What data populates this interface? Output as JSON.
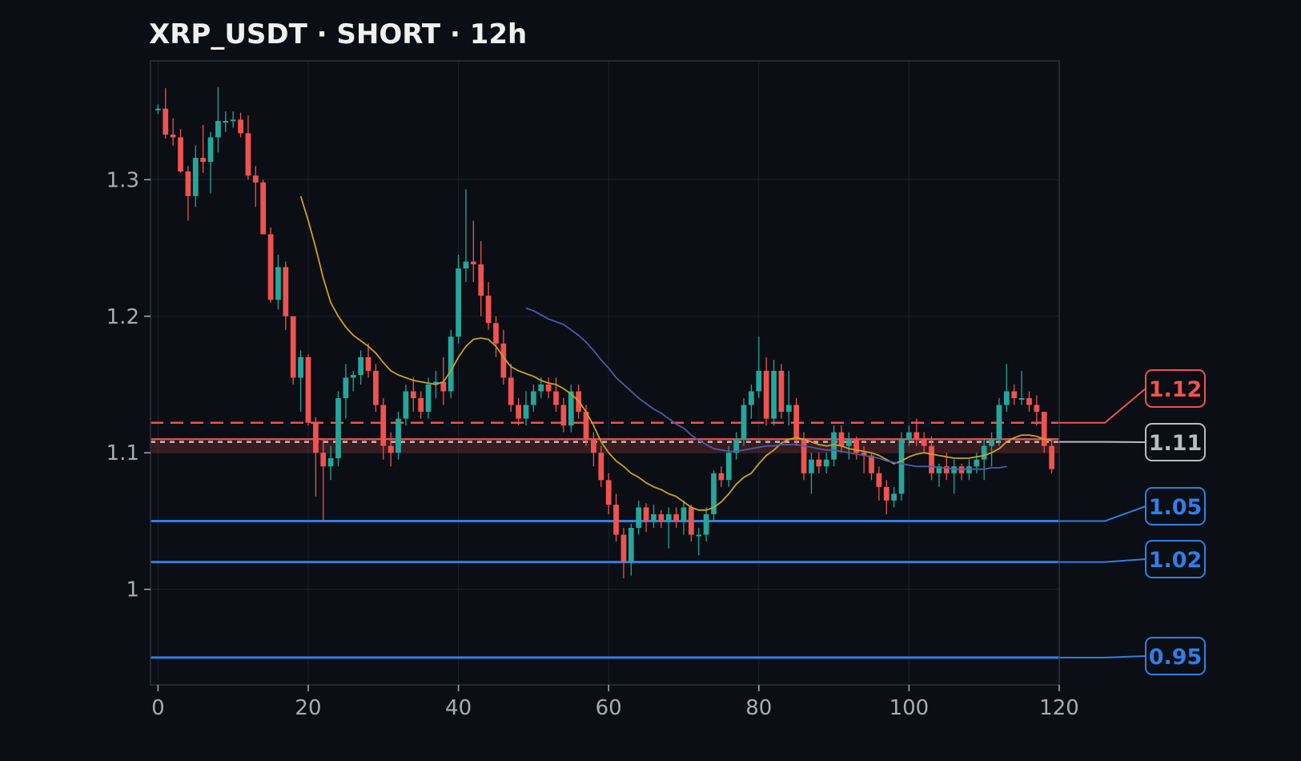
{
  "title": "XRP_USDT · SHORT · 12h",
  "colors": {
    "background": "#0b0e14",
    "up": "#26a69a",
    "down": "#ef5350",
    "ma_fast": "#c9a227",
    "ma_slow": "#4f5ba8",
    "grid": "#1c212b",
    "frame": "#2c323d",
    "tick": "#a8adb5",
    "support": "#2f7fe6",
    "current": "#b8bcc4",
    "entry": "#ef5350"
  },
  "chart_data": {
    "type": "candlestick",
    "xlim": [
      -1,
      120
    ],
    "ylim": [
      0.93,
      1.387
    ],
    "grid": true,
    "x_ticks": [
      "0",
      "20",
      "40",
      "60",
      "80",
      "100",
      "120"
    ],
    "y_ticks": [
      "1",
      "1.1",
      "1.2",
      "1.3"
    ],
    "candles": [
      [
        0,
        1.352,
        1.355,
        1.348,
        1.352
      ],
      [
        1,
        1.352,
        1.367,
        1.33,
        1.333
      ],
      [
        2,
        1.333,
        1.345,
        1.325,
        1.331
      ],
      [
        3,
        1.331,
        1.337,
        1.305,
        1.306
      ],
      [
        4,
        1.306,
        1.31,
        1.27,
        1.288
      ],
      [
        5,
        1.288,
        1.325,
        1.28,
        1.316
      ],
      [
        6,
        1.316,
        1.34,
        1.305,
        1.313
      ],
      [
        7,
        1.313,
        1.335,
        1.29,
        1.331
      ],
      [
        8,
        1.331,
        1.368,
        1.32,
        1.343
      ],
      [
        9,
        1.343,
        1.35,
        1.335,
        1.343
      ],
      [
        10,
        1.343,
        1.35,
        1.338,
        1.344
      ],
      [
        11,
        1.344,
        1.349,
        1.331,
        1.334
      ],
      [
        12,
        1.334,
        1.347,
        1.3,
        1.303
      ],
      [
        13,
        1.303,
        1.31,
        1.28,
        1.298
      ],
      [
        14,
        1.298,
        1.3,
        1.26,
        1.26
      ],
      [
        15,
        1.26,
        1.265,
        1.21,
        1.212
      ],
      [
        16,
        1.212,
        1.245,
        1.205,
        1.236
      ],
      [
        17,
        1.236,
        1.24,
        1.19,
        1.2
      ],
      [
        18,
        1.2,
        1.2,
        1.15,
        1.155
      ],
      [
        19,
        1.155,
        1.175,
        1.13,
        1.17
      ],
      [
        20,
        1.17,
        1.172,
        1.12,
        1.122
      ],
      [
        21,
        1.122,
        1.126,
        1.068,
        1.1
      ],
      [
        22,
        1.1,
        1.11,
        1.05,
        1.09
      ],
      [
        23,
        1.09,
        1.105,
        1.08,
        1.096
      ],
      [
        24,
        1.096,
        1.145,
        1.09,
        1.14
      ],
      [
        25,
        1.14,
        1.165,
        1.125,
        1.155
      ],
      [
        26,
        1.155,
        1.16,
        1.145,
        1.157
      ],
      [
        27,
        1.157,
        1.175,
        1.15,
        1.17
      ],
      [
        28,
        1.17,
        1.18,
        1.155,
        1.16
      ],
      [
        29,
        1.16,
        1.165,
        1.13,
        1.135
      ],
      [
        30,
        1.135,
        1.14,
        1.095,
        1.105
      ],
      [
        31,
        1.105,
        1.115,
        1.09,
        1.1
      ],
      [
        32,
        1.1,
        1.13,
        1.095,
        1.125
      ],
      [
        33,
        1.125,
        1.15,
        1.12,
        1.145
      ],
      [
        34,
        1.145,
        1.155,
        1.13,
        1.14
      ],
      [
        35,
        1.14,
        1.145,
        1.125,
        1.13
      ],
      [
        36,
        1.13,
        1.155,
        1.125,
        1.15
      ],
      [
        37,
        1.15,
        1.16,
        1.14,
        1.152
      ],
      [
        38,
        1.152,
        1.17,
        1.135,
        1.145
      ],
      [
        39,
        1.145,
        1.19,
        1.14,
        1.185
      ],
      [
        40,
        1.185,
        1.245,
        1.18,
        1.235
      ],
      [
        41,
        1.235,
        1.293,
        1.225,
        1.24
      ],
      [
        42,
        1.24,
        1.27,
        1.225,
        1.238
      ],
      [
        43,
        1.238,
        1.255,
        1.2,
        1.215
      ],
      [
        44,
        1.215,
        1.225,
        1.19,
        1.195
      ],
      [
        45,
        1.195,
        1.2,
        1.17,
        1.18
      ],
      [
        46,
        1.18,
        1.19,
        1.15,
        1.155
      ],
      [
        47,
        1.155,
        1.165,
        1.13,
        1.135
      ],
      [
        48,
        1.135,
        1.14,
        1.12,
        1.125
      ],
      [
        49,
        1.125,
        1.145,
        1.12,
        1.135
      ],
      [
        50,
        1.135,
        1.15,
        1.13,
        1.145
      ],
      [
        51,
        1.145,
        1.155,
        1.14,
        1.15
      ],
      [
        52,
        1.15,
        1.155,
        1.14,
        1.145
      ],
      [
        53,
        1.145,
        1.155,
        1.13,
        1.135
      ],
      [
        54,
        1.135,
        1.14,
        1.115,
        1.12
      ],
      [
        55,
        1.12,
        1.15,
        1.115,
        1.145
      ],
      [
        56,
        1.145,
        1.15,
        1.125,
        1.13
      ],
      [
        57,
        1.13,
        1.135,
        1.105,
        1.11
      ],
      [
        58,
        1.11,
        1.115,
        1.09,
        1.1
      ],
      [
        59,
        1.1,
        1.105,
        1.075,
        1.08
      ],
      [
        60,
        1.08,
        1.085,
        1.055,
        1.062
      ],
      [
        61,
        1.062,
        1.07,
        1.035,
        1.04
      ],
      [
        62,
        1.04,
        1.045,
        1.008,
        1.02
      ],
      [
        63,
        1.02,
        1.048,
        1.01,
        1.045
      ],
      [
        64,
        1.045,
        1.065,
        1.04,
        1.06
      ],
      [
        65,
        1.06,
        1.063,
        1.042,
        1.05
      ],
      [
        66,
        1.05,
        1.062,
        1.045,
        1.055
      ],
      [
        67,
        1.055,
        1.058,
        1.045,
        1.05
      ],
      [
        68,
        1.05,
        1.06,
        1.03,
        1.055
      ],
      [
        69,
        1.055,
        1.06,
        1.045,
        1.05
      ],
      [
        70,
        1.05,
        1.065,
        1.04,
        1.06
      ],
      [
        71,
        1.06,
        1.062,
        1.035,
        1.04
      ],
      [
        72,
        1.04,
        1.045,
        1.025,
        1.04
      ],
      [
        73,
        1.04,
        1.06,
        1.035,
        1.055
      ],
      [
        74,
        1.055,
        1.087,
        1.05,
        1.085
      ],
      [
        75,
        1.085,
        1.09,
        1.075,
        1.08
      ],
      [
        76,
        1.08,
        1.105,
        1.075,
        1.1
      ],
      [
        77,
        1.1,
        1.115,
        1.095,
        1.11
      ],
      [
        78,
        1.11,
        1.14,
        1.105,
        1.135
      ],
      [
        79,
        1.135,
        1.15,
        1.125,
        1.145
      ],
      [
        80,
        1.145,
        1.185,
        1.14,
        1.16
      ],
      [
        81,
        1.16,
        1.17,
        1.12,
        1.125
      ],
      [
        82,
        1.125,
        1.168,
        1.12,
        1.16
      ],
      [
        83,
        1.16,
        1.165,
        1.125,
        1.13
      ],
      [
        84,
        1.13,
        1.16,
        1.12,
        1.135
      ],
      [
        85,
        1.135,
        1.14,
        1.105,
        1.11
      ],
      [
        86,
        1.11,
        1.115,
        1.08,
        1.085
      ],
      [
        87,
        1.085,
        1.1,
        1.07,
        1.095
      ],
      [
        88,
        1.095,
        1.1,
        1.085,
        1.09
      ],
      [
        89,
        1.09,
        1.1,
        1.085,
        1.095
      ],
      [
        90,
        1.095,
        1.12,
        1.09,
        1.115
      ],
      [
        91,
        1.115,
        1.12,
        1.1,
        1.105
      ],
      [
        92,
        1.105,
        1.115,
        1.095,
        1.11
      ],
      [
        93,
        1.11,
        1.112,
        1.095,
        1.1
      ],
      [
        94,
        1.1,
        1.105,
        1.085,
        1.098
      ],
      [
        95,
        1.098,
        1.1,
        1.08,
        1.085
      ],
      [
        96,
        1.085,
        1.09,
        1.065,
        1.075
      ],
      [
        97,
        1.075,
        1.08,
        1.055,
        1.065
      ],
      [
        98,
        1.065,
        1.075,
        1.06,
        1.07
      ],
      [
        99,
        1.07,
        1.115,
        1.065,
        1.11
      ],
      [
        100,
        1.11,
        1.12,
        1.105,
        1.115
      ],
      [
        101,
        1.115,
        1.125,
        1.105,
        1.11
      ],
      [
        102,
        1.11,
        1.115,
        1.1,
        1.105
      ],
      [
        103,
        1.105,
        1.112,
        1.08,
        1.085
      ],
      [
        104,
        1.085,
        1.092,
        1.075,
        1.09
      ],
      [
        105,
        1.09,
        1.1,
        1.08,
        1.085
      ],
      [
        106,
        1.085,
        1.095,
        1.07,
        1.09
      ],
      [
        107,
        1.09,
        1.092,
        1.08,
        1.085
      ],
      [
        108,
        1.085,
        1.095,
        1.08,
        1.09
      ],
      [
        109,
        1.09,
        1.1,
        1.085,
        1.095
      ],
      [
        110,
        1.095,
        1.11,
        1.08,
        1.105
      ],
      [
        111,
        1.105,
        1.115,
        1.09,
        1.11
      ],
      [
        112,
        1.11,
        1.14,
        1.105,
        1.135
      ],
      [
        113,
        1.135,
        1.165,
        1.13,
        1.145
      ],
      [
        114,
        1.145,
        1.15,
        1.135,
        1.14
      ],
      [
        115,
        1.14,
        1.16,
        1.135,
        1.14
      ],
      [
        116,
        1.14,
        1.145,
        1.13,
        1.135
      ],
      [
        117,
        1.135,
        1.142,
        1.12,
        1.13
      ],
      [
        118,
        1.13,
        1.13,
        1.1,
        1.105
      ],
      [
        119,
        1.105,
        1.11,
        1.085,
        1.088
      ]
    ],
    "ma_fast": [
      [
        19,
        1.288
      ],
      [
        20,
        1.27
      ],
      [
        21,
        1.25
      ],
      [
        22,
        1.228
      ],
      [
        23,
        1.21
      ],
      [
        24,
        1.2
      ],
      [
        25,
        1.192
      ],
      [
        26,
        1.186
      ],
      [
        27,
        1.182
      ],
      [
        28,
        1.178
      ],
      [
        29,
        1.173
      ],
      [
        30,
        1.166
      ],
      [
        31,
        1.16
      ],
      [
        32,
        1.157
      ],
      [
        33,
        1.155
      ],
      [
        34,
        1.153
      ],
      [
        35,
        1.152
      ],
      [
        36,
        1.151
      ],
      [
        37,
        1.15
      ],
      [
        38,
        1.152
      ],
      [
        39,
        1.16
      ],
      [
        40,
        1.17
      ],
      [
        41,
        1.178
      ],
      [
        42,
        1.183
      ],
      [
        43,
        1.184
      ],
      [
        44,
        1.183
      ],
      [
        45,
        1.178
      ],
      [
        46,
        1.17
      ],
      [
        47,
        1.163
      ],
      [
        48,
        1.16
      ],
      [
        49,
        1.158
      ],
      [
        50,
        1.156
      ],
      [
        51,
        1.153
      ],
      [
        52,
        1.151
      ],
      [
        53,
        1.15
      ],
      [
        54,
        1.147
      ],
      [
        55,
        1.143
      ],
      [
        56,
        1.138
      ],
      [
        57,
        1.13
      ],
      [
        58,
        1.12
      ],
      [
        59,
        1.108
      ],
      [
        60,
        1.1
      ],
      [
        61,
        1.094
      ],
      [
        62,
        1.09
      ],
      [
        63,
        1.085
      ],
      [
        64,
        1.082
      ],
      [
        65,
        1.078
      ],
      [
        66,
        1.075
      ],
      [
        67,
        1.073
      ],
      [
        68,
        1.07
      ],
      [
        69,
        1.068
      ],
      [
        70,
        1.064
      ],
      [
        71,
        1.06
      ],
      [
        72,
        1.058
      ],
      [
        73,
        1.058
      ],
      [
        74,
        1.06
      ],
      [
        75,
        1.064
      ],
      [
        76,
        1.07
      ],
      [
        77,
        1.077
      ],
      [
        78,
        1.082
      ],
      [
        79,
        1.085
      ],
      [
        80,
        1.092
      ],
      [
        81,
        1.098
      ],
      [
        82,
        1.102
      ],
      [
        83,
        1.107
      ],
      [
        84,
        1.11
      ],
      [
        85,
        1.111
      ],
      [
        86,
        1.11
      ],
      [
        87,
        1.108
      ],
      [
        88,
        1.106
      ],
      [
        89,
        1.105
      ],
      [
        90,
        1.106
      ],
      [
        91,
        1.105
      ],
      [
        92,
        1.103
      ],
      [
        93,
        1.102
      ],
      [
        94,
        1.101
      ],
      [
        95,
        1.1
      ],
      [
        96,
        1.098
      ],
      [
        97,
        1.095
      ],
      [
        98,
        1.092
      ],
      [
        99,
        1.094
      ],
      [
        100,
        1.097
      ],
      [
        101,
        1.099
      ],
      [
        102,
        1.1
      ],
      [
        103,
        1.099
      ],
      [
        104,
        1.098
      ],
      [
        105,
        1.097
      ],
      [
        106,
        1.096
      ],
      [
        107,
        1.096
      ],
      [
        108,
        1.096
      ],
      [
        109,
        1.097
      ],
      [
        110,
        1.098
      ],
      [
        111,
        1.1
      ],
      [
        112,
        1.103
      ],
      [
        113,
        1.108
      ],
      [
        114,
        1.111
      ],
      [
        115,
        1.113
      ],
      [
        116,
        1.113
      ],
      [
        117,
        1.112
      ],
      [
        118,
        1.11
      ],
      [
        119,
        1.109
      ]
    ],
    "ma_slow": [
      [
        49,
        1.206
      ],
      [
        50,
        1.204
      ],
      [
        51,
        1.201
      ],
      [
        52,
        1.198
      ],
      [
        53,
        1.196
      ],
      [
        54,
        1.194
      ],
      [
        55,
        1.19
      ],
      [
        56,
        1.186
      ],
      [
        57,
        1.181
      ],
      [
        58,
        1.175
      ],
      [
        59,
        1.168
      ],
      [
        60,
        1.162
      ],
      [
        61,
        1.155
      ],
      [
        62,
        1.15
      ],
      [
        63,
        1.145
      ],
      [
        64,
        1.14
      ],
      [
        65,
        1.136
      ],
      [
        66,
        1.132
      ],
      [
        67,
        1.129
      ],
      [
        68,
        1.125
      ],
      [
        69,
        1.121
      ],
      [
        70,
        1.118
      ],
      [
        71,
        1.113
      ],
      [
        72,
        1.109
      ],
      [
        73,
        1.106
      ],
      [
        74,
        1.103
      ],
      [
        75,
        1.102
      ],
      [
        76,
        1.101
      ],
      [
        77,
        1.101
      ],
      [
        78,
        1.102
      ],
      [
        79,
        1.103
      ],
      [
        80,
        1.104
      ],
      [
        81,
        1.105
      ],
      [
        82,
        1.105
      ],
      [
        83,
        1.106
      ],
      [
        84,
        1.106
      ],
      [
        85,
        1.106
      ],
      [
        86,
        1.105
      ],
      [
        87,
        1.104
      ],
      [
        88,
        1.103
      ],
      [
        89,
        1.102
      ],
      [
        90,
        1.102
      ],
      [
        91,
        1.101
      ],
      [
        92,
        1.1
      ],
      [
        93,
        1.099
      ],
      [
        94,
        1.098
      ],
      [
        95,
        1.097
      ],
      [
        96,
        1.096
      ],
      [
        97,
        1.094
      ],
      [
        98,
        1.093
      ],
      [
        99,
        1.092
      ],
      [
        100,
        1.091
      ],
      [
        101,
        1.09
      ],
      [
        102,
        1.09
      ],
      [
        103,
        1.09
      ],
      [
        104,
        1.089
      ],
      [
        105,
        1.089
      ],
      [
        106,
        1.088
      ],
      [
        107,
        1.088
      ],
      [
        108,
        1.088
      ],
      [
        109,
        1.088
      ],
      [
        110,
        1.088
      ],
      [
        111,
        1.089
      ],
      [
        112,
        1.089
      ],
      [
        113,
        1.09
      ]
    ],
    "entry_zone": [
      1.1,
      1.11
    ],
    "levels": [
      {
        "name": "entry",
        "value": 1.122,
        "label": "1.12",
        "style": "dashed",
        "color": "#ef5350"
      },
      {
        "name": "current",
        "value": 1.108,
        "label": "1.11",
        "style": "dotted",
        "color": "#b8bcc4"
      },
      {
        "name": "target-1",
        "value": 1.05,
        "label": "1.05",
        "style": "solid",
        "color": "#2f7fe6"
      },
      {
        "name": "target-2",
        "value": 1.02,
        "label": "1.02",
        "style": "solid",
        "color": "#2f7fe6"
      },
      {
        "name": "target-3",
        "value": 0.95,
        "label": "0.95",
        "style": "solid",
        "color": "#2f7fe6"
      }
    ]
  }
}
